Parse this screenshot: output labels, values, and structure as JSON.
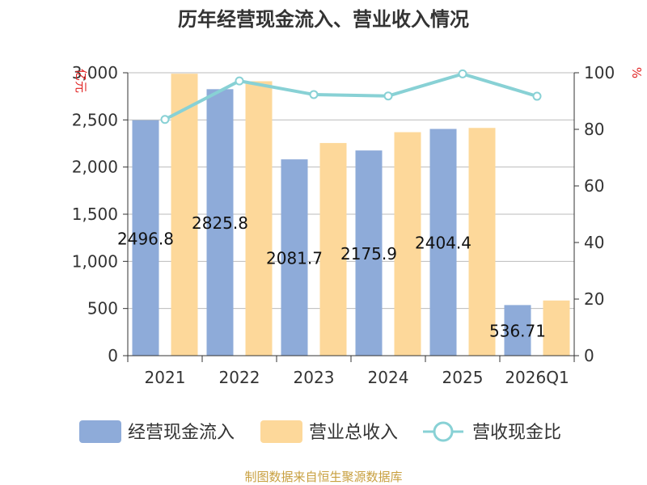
{
  "title": "历年经营现金流入、营业收入情况",
  "source": "制图数据来自恒生聚源数据库",
  "colors": {
    "cash": "#8eabd9",
    "revenue": "#fdd89a",
    "ratio": "#88d1d5",
    "grid": "#bbbbbb",
    "axis": "#333333",
    "unit": "#e02020"
  },
  "chart_data": {
    "type": "bar",
    "categories": [
      "2021",
      "2022",
      "2023",
      "2024",
      "2025",
      "2026Q1"
    ],
    "left_unit": "亿元",
    "right_unit": "%",
    "ylim_left": [
      0,
      3000
    ],
    "ylim_right": [
      0,
      100
    ],
    "left_ticks": [
      "0",
      "500",
      "1,000",
      "1,500",
      "2,000",
      "2,500",
      "3,000"
    ],
    "left_tick_values": [
      0,
      500,
      1000,
      1500,
      2000,
      2500,
      3000
    ],
    "right_ticks": [
      "0",
      "20",
      "40",
      "60",
      "80",
      "100"
    ],
    "right_tick_values": [
      0,
      20,
      40,
      60,
      80,
      100
    ],
    "series": [
      {
        "name": "经营现金流入",
        "kind": "bar",
        "axis": "left",
        "values": [
          2496.8,
          2825.8,
          2081.7,
          2175.9,
          2404.4,
          536.71
        ],
        "labels": [
          "2496.8",
          "2825.8",
          "2081.7",
          "2175.9",
          "2404.4",
          "536.71"
        ]
      },
      {
        "name": "营业总收入",
        "kind": "bar",
        "axis": "left",
        "values": [
          2990,
          2910,
          2255,
          2370,
          2415,
          585
        ]
      },
      {
        "name": "营收现金比",
        "kind": "line",
        "axis": "right",
        "values": [
          83.5,
          97.1,
          92.3,
          91.8,
          99.6,
          91.7
        ]
      }
    ],
    "grid": true,
    "legend_position": "bottom"
  }
}
